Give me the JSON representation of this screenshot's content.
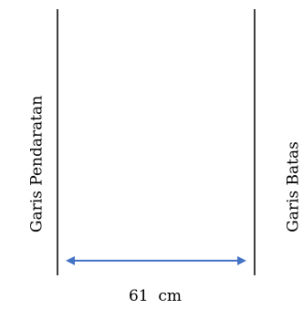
{
  "diagram": {
    "left_line_label": "Garis Pendaratan",
    "right_line_label": "Garis Batas",
    "distance_label": "61  cm",
    "colors": {
      "lines": "#000000",
      "arrow": "#4472c4",
      "text": "#000000"
    }
  }
}
